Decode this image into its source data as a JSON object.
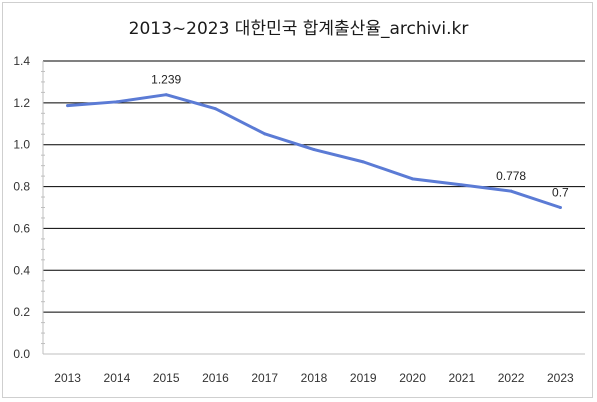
{
  "chart_data": {
    "type": "line",
    "title": "2013~2023 대한민국 합계출산율_archivi.kr",
    "categories": [
      "2013",
      "2014",
      "2015",
      "2016",
      "2017",
      "2018",
      "2019",
      "2020",
      "2021",
      "2022",
      "2023"
    ],
    "series": [
      {
        "values": [
          1.187,
          1.205,
          1.239,
          1.172,
          1.052,
          0.977,
          0.918,
          0.837,
          0.808,
          0.778,
          0.7
        ],
        "color": "#5b7bd5"
      }
    ],
    "data_labels": [
      {
        "category": "2015",
        "text": "1.239"
      },
      {
        "category": "2022",
        "text": "0.778"
      },
      {
        "category": "2023",
        "text": "0.7"
      }
    ],
    "y_ticks": [
      "0.0",
      "0.2",
      "0.4",
      "0.6",
      "0.8",
      "1.0",
      "1.2",
      "1.4"
    ],
    "ylim": [
      0,
      1.4
    ],
    "grid": true,
    "xlabel": "",
    "ylabel": ""
  }
}
